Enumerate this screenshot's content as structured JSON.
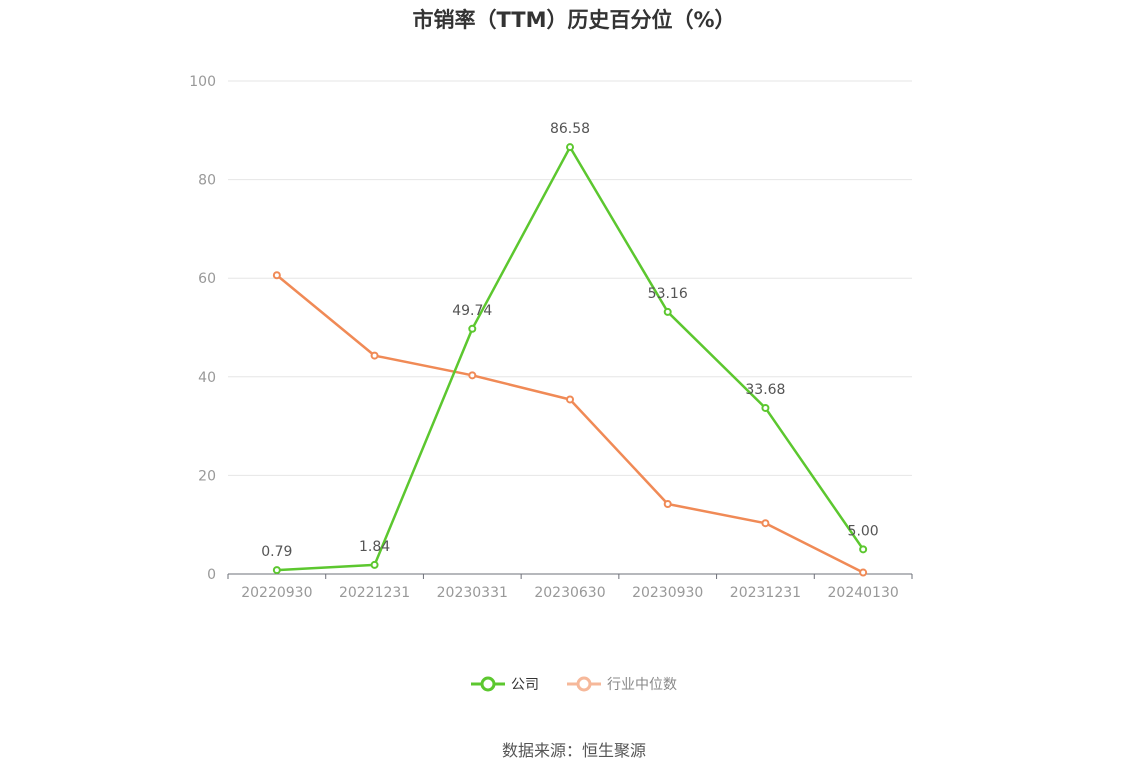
{
  "chart_data": {
    "type": "line",
    "title": "市销率（TTM）历史百分位（%）",
    "categories": [
      "20220930",
      "20221231",
      "20230331",
      "20230630",
      "20230930",
      "20231231",
      "20240130"
    ],
    "series": [
      {
        "name": "公司",
        "color": "#5cc72f",
        "values": [
          0.79,
          1.84,
          49.74,
          86.58,
          53.16,
          33.68,
          5.0
        ],
        "labels": [
          "0.79",
          "1.84",
          "49.74",
          "86.58",
          "53.16",
          "33.68",
          "5.00"
        ]
      },
      {
        "name": "行业中位数",
        "color": "#f08a56",
        "values": [
          60.6,
          44.3,
          40.3,
          35.4,
          14.2,
          10.3,
          0.3
        ]
      }
    ],
    "ylim": [
      0,
      100
    ],
    "yticks": [
      "0",
      "20",
      "40",
      "60",
      "80",
      "100"
    ],
    "grid": true,
    "legend": "bottom-center"
  },
  "source": "数据来源：恒生聚源"
}
